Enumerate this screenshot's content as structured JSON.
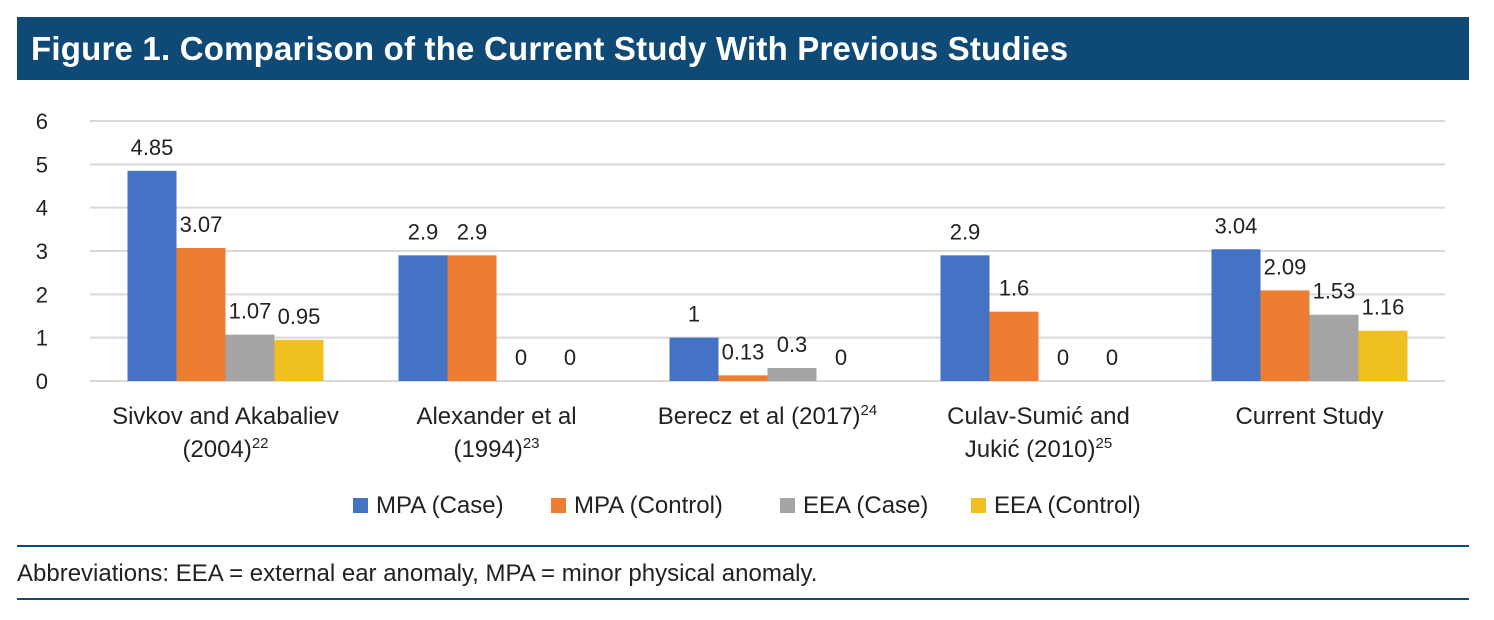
{
  "title": "Figure 1. Comparison of the Current Study With Previous Studies",
  "footnote": "Abbreviations: EEA = external ear anomaly, MPA = minor physical anomaly.",
  "colors": {
    "header_bg": "#0e4a75",
    "grid": "#d9d9d9"
  },
  "chart_data": {
    "type": "bar",
    "categories": [
      {
        "lines": [
          "Sivkov and Akabaliev",
          "(2004)"
        ],
        "sup": "22"
      },
      {
        "lines": [
          "Alexander et al",
          "(1994)"
        ],
        "sup": "23"
      },
      {
        "lines": [
          "Berecz et al (2017)"
        ],
        "sup": "24"
      },
      {
        "lines": [
          "Culav-Sumić and",
          "Jukić  (2010)"
        ],
        "sup": "25"
      },
      {
        "lines": [
          "Current Study"
        ],
        "sup": ""
      }
    ],
    "series": [
      {
        "name": "MPA (Case)",
        "color": "#4472c4",
        "values": [
          4.85,
          2.9,
          1,
          2.9,
          3.04
        ],
        "labels": [
          "4.85",
          "2.9",
          "1",
          "2.9",
          "3.04"
        ]
      },
      {
        "name": "MPA (Control)",
        "color": "#ed7d31",
        "values": [
          3.07,
          2.9,
          0.13,
          1.6,
          2.09
        ],
        "labels": [
          "3.07",
          "2.9",
          "0.13",
          "1.6",
          "2.09"
        ]
      },
      {
        "name": "EEA (Case)",
        "color": "#a5a5a5",
        "values": [
          1.07,
          0,
          0.3,
          0,
          1.53
        ],
        "labels": [
          "1.07",
          "0",
          "0.3",
          "0",
          "1.53"
        ]
      },
      {
        "name": "EEA (Control)",
        "color": "#f0c020",
        "values": [
          0.95,
          0,
          0,
          0,
          1.16
        ],
        "labels": [
          "0.95",
          "0",
          "0",
          "0",
          "1.16"
        ]
      }
    ],
    "ylim": [
      0,
      6
    ],
    "yticks": [
      "0",
      "1",
      "2",
      "3",
      "4",
      "5",
      "6"
    ],
    "grid": true,
    "legend_position": "bottom"
  }
}
